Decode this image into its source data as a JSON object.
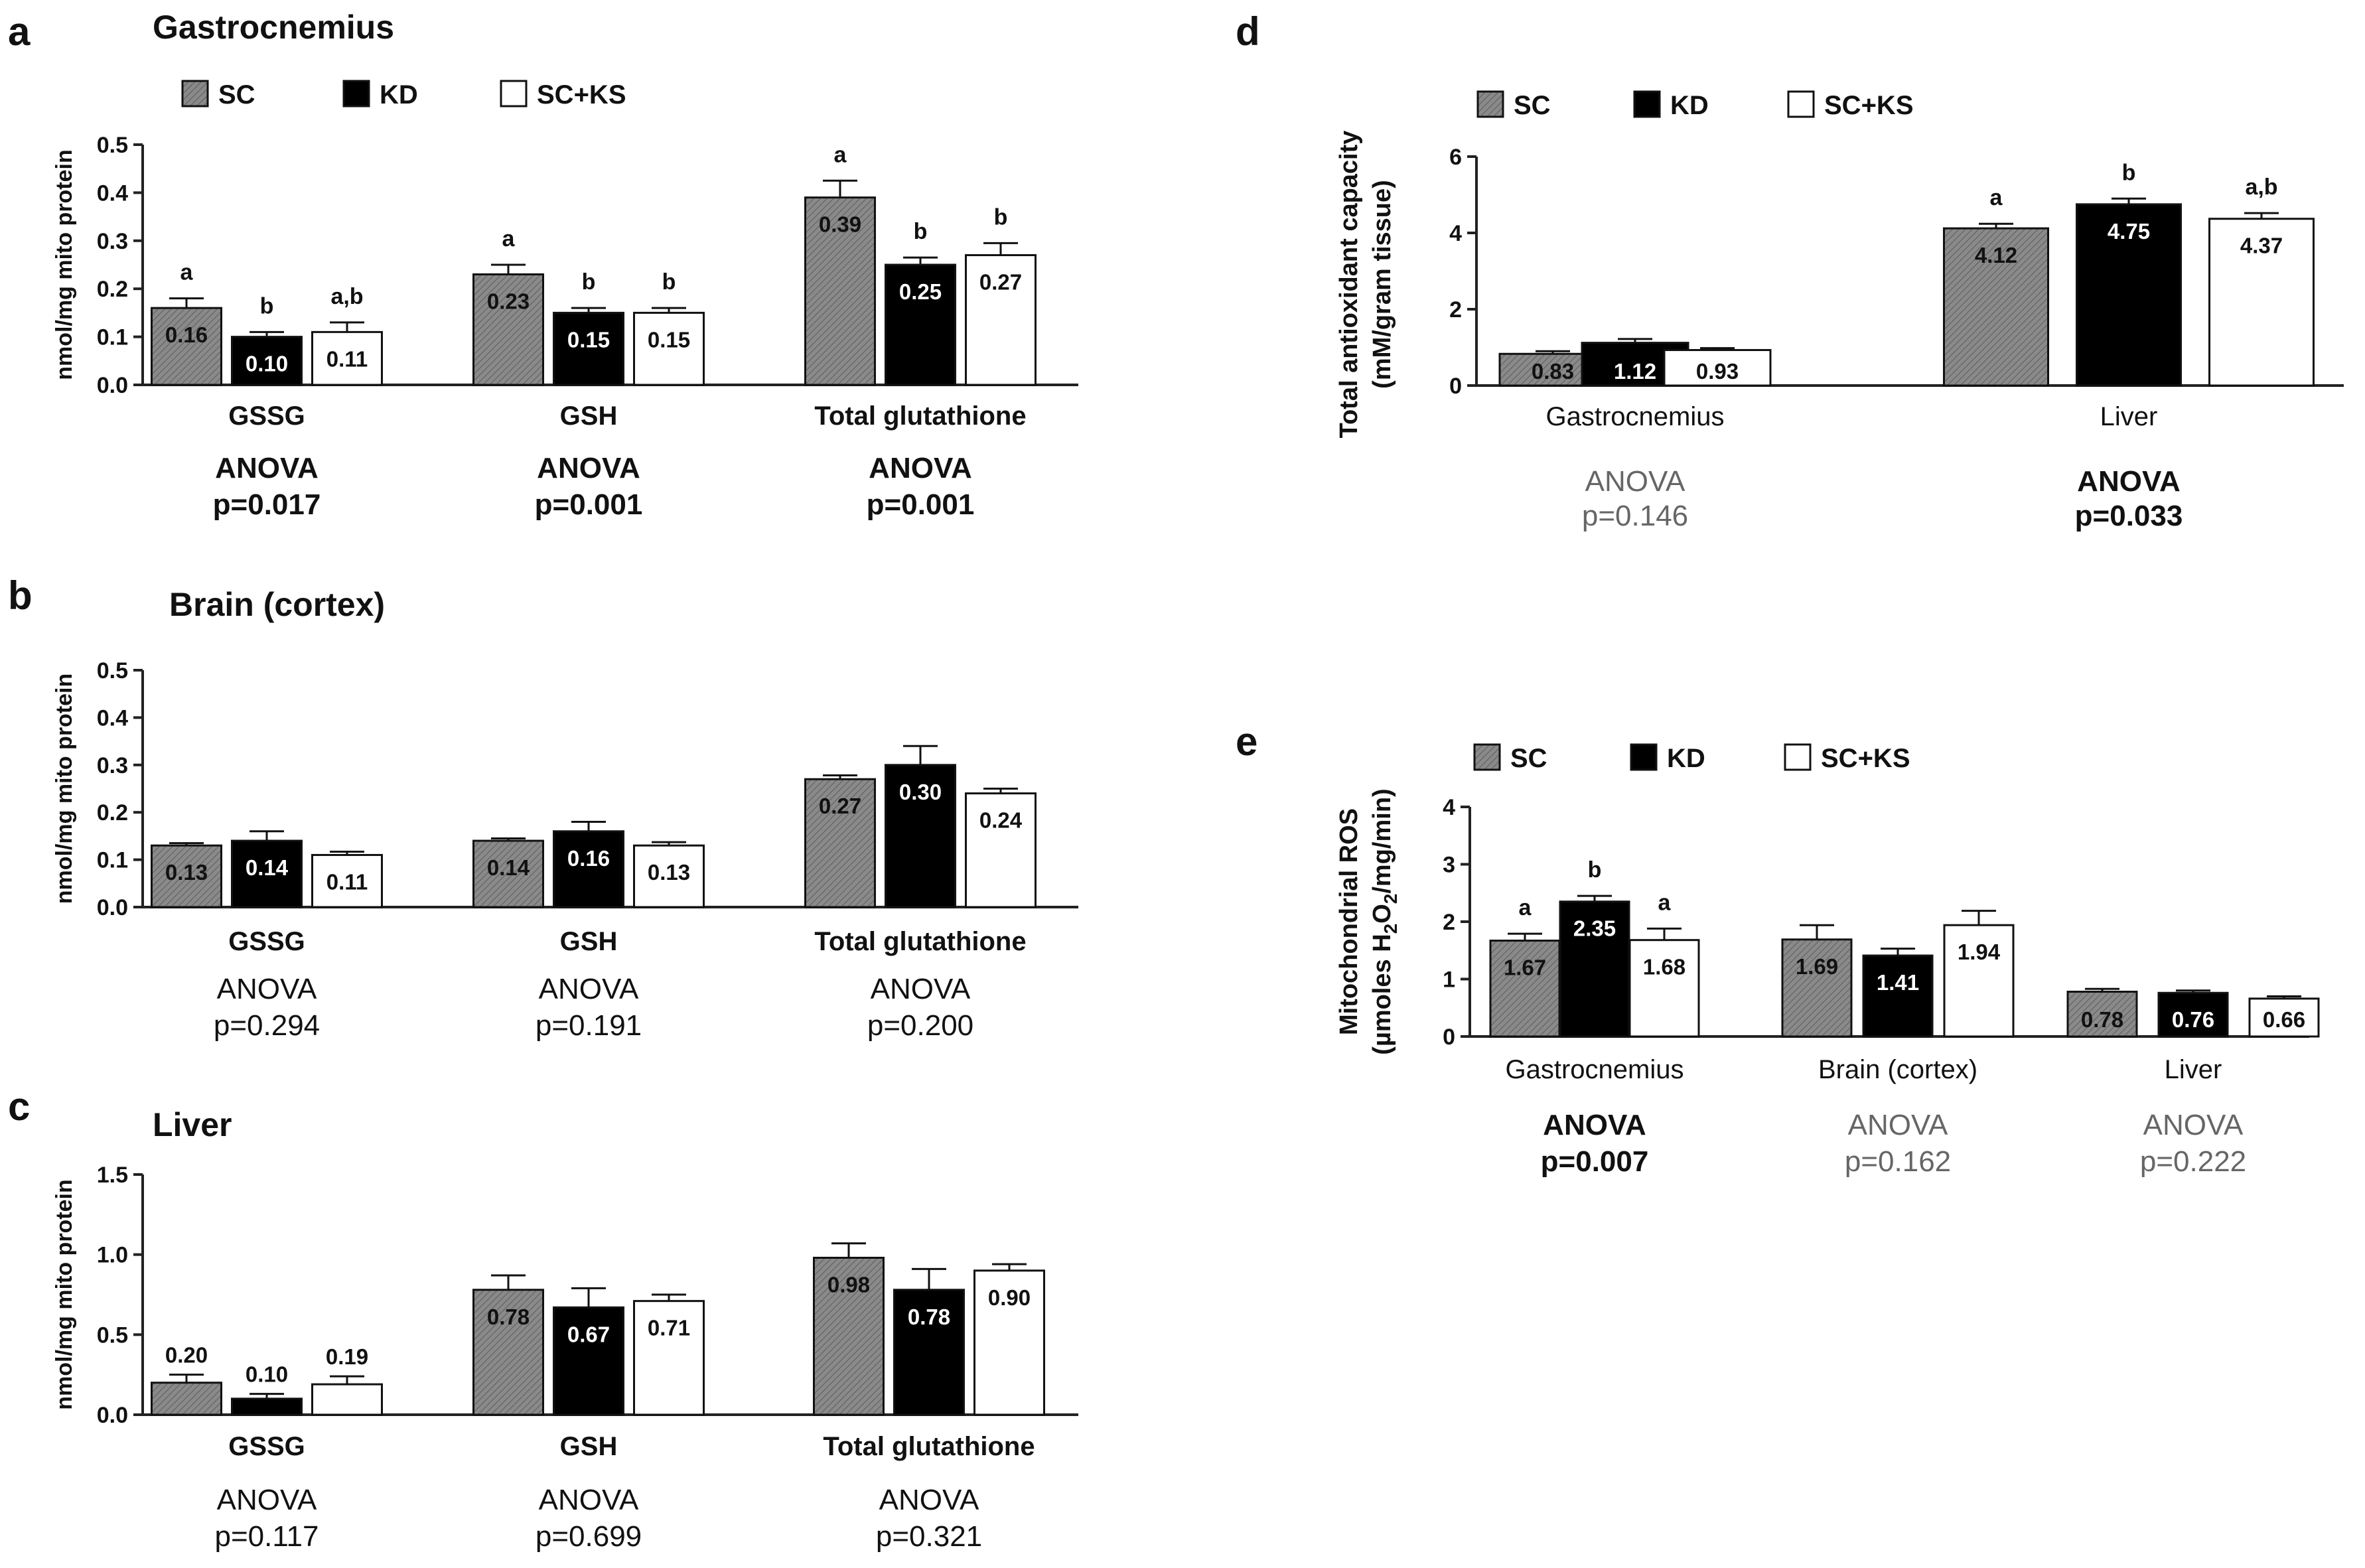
{
  "series_legend": [
    {
      "name": "SC",
      "color": "#7f7f7f"
    },
    {
      "name": "KD",
      "color": "#000000"
    },
    {
      "name": "SC+KS",
      "color": "#ffffff"
    }
  ],
  "chart_data": [
    {
      "panel": "a",
      "type": "bar",
      "title": "Gastrocnemius",
      "ylabel": "nmol/mg mito protein",
      "ylim": [
        0,
        0.5
      ],
      "yticks": [
        "0.0",
        "0.1",
        "0.2",
        "0.3",
        "0.4",
        "0.5"
      ],
      "categories": [
        "GSSG",
        "GSH",
        "Total glutathione"
      ],
      "series": [
        {
          "name": "SC",
          "values": [
            0.16,
            0.23,
            0.39
          ],
          "errors": [
            0.02,
            0.02,
            0.035
          ],
          "labels": [
            "0.16",
            "0.23",
            "0.39"
          ],
          "sig": [
            "a",
            "a",
            "a"
          ]
        },
        {
          "name": "KD",
          "values": [
            0.1,
            0.15,
            0.25
          ],
          "errors": [
            0.01,
            0.01,
            0.015
          ],
          "labels": [
            "0.10",
            "0.15",
            "0.25"
          ],
          "sig": [
            "b",
            "b",
            "b"
          ]
        },
        {
          "name": "SC+KS",
          "values": [
            0.11,
            0.15,
            0.27
          ],
          "errors": [
            0.02,
            0.01,
            0.025
          ],
          "labels": [
            "0.11",
            "0.15",
            "0.27"
          ],
          "sig": [
            "a,b",
            "b",
            "b"
          ]
        }
      ],
      "anova": [
        {
          "line1": "ANOVA",
          "line2": "p=0.017",
          "style": "bold"
        },
        {
          "line1": "ANOVA",
          "line2": "p=0.001",
          "style": "bold"
        },
        {
          "line1": "ANOVA",
          "line2": "p=0.001",
          "style": "bold"
        }
      ]
    },
    {
      "panel": "b",
      "type": "bar",
      "title": "Brain (cortex)",
      "ylabel": "nmol/mg mito protein",
      "ylim": [
        0,
        0.5
      ],
      "yticks": [
        "0.0",
        "0.1",
        "0.2",
        "0.3",
        "0.4",
        "0.5"
      ],
      "categories": [
        "GSSG",
        "GSH",
        "Total glutathione"
      ],
      "series": [
        {
          "name": "SC",
          "values": [
            0.13,
            0.14,
            0.27
          ],
          "errors": [
            0.005,
            0.005,
            0.008
          ],
          "labels": [
            "0.13",
            "0.14",
            "0.27"
          ],
          "sig": [
            "",
            "",
            ""
          ]
        },
        {
          "name": "KD",
          "values": [
            0.14,
            0.16,
            0.3
          ],
          "errors": [
            0.02,
            0.02,
            0.04
          ],
          "labels": [
            "0.14",
            "0.16",
            "0.30"
          ],
          "sig": [
            "",
            "",
            ""
          ]
        },
        {
          "name": "SC+KS",
          "values": [
            0.11,
            0.13,
            0.24
          ],
          "errors": [
            0.007,
            0.007,
            0.01
          ],
          "labels": [
            "0.11",
            "0.13",
            "0.24"
          ],
          "sig": [
            "",
            "",
            ""
          ]
        }
      ],
      "anova": [
        {
          "line1": "ANOVA",
          "line2": "p=0.294",
          "style": "normal"
        },
        {
          "line1": "ANOVA",
          "line2": "p=0.191",
          "style": "normal"
        },
        {
          "line1": "ANOVA",
          "line2": "p=0.200",
          "style": "normal"
        }
      ]
    },
    {
      "panel": "c",
      "type": "bar",
      "title": "Liver",
      "ylabel": "nmol/mg mito protein",
      "ylim": [
        0,
        1.5
      ],
      "yticks": [
        "0.0",
        "0.5",
        "1.0",
        "1.5"
      ],
      "categories": [
        "GSSG",
        "GSH",
        "Total glutathione"
      ],
      "series": [
        {
          "name": "SC",
          "values": [
            0.2,
            0.78,
            0.98
          ],
          "errors": [
            0.05,
            0.09,
            0.09
          ],
          "labels": [
            "0.20",
            "0.78",
            "0.98"
          ],
          "sig": [
            "",
            "",
            ""
          ]
        },
        {
          "name": "KD",
          "values": [
            0.1,
            0.67,
            0.78
          ],
          "errors": [
            0.03,
            0.12,
            0.13
          ],
          "labels": [
            "0.10",
            "0.67",
            "0.78"
          ],
          "sig": [
            "",
            "",
            ""
          ]
        },
        {
          "name": "SC+KS",
          "values": [
            0.19,
            0.71,
            0.9
          ],
          "errors": [
            0.05,
            0.04,
            0.04
          ],
          "labels": [
            "0.19",
            "0.71",
            "0.90"
          ],
          "sig": [
            "",
            "",
            ""
          ]
        }
      ],
      "anova": [
        {
          "line1": "ANOVA",
          "line2": "p=0.117",
          "style": "normal"
        },
        {
          "line1": "ANOVA",
          "line2": "p=0.699",
          "style": "normal"
        },
        {
          "line1": "ANOVA",
          "line2": "p=0.321",
          "style": "normal"
        }
      ]
    },
    {
      "panel": "d",
      "type": "bar",
      "title": "",
      "ylabel": "Total antioxidant capacity",
      "ylabel2": "(mM/gram tissue)",
      "ylim": [
        0,
        6
      ],
      "yticks": [
        "0",
        "2",
        "4",
        "6"
      ],
      "categories": [
        "Gastrocnemius",
        "Liver"
      ],
      "series": [
        {
          "name": "SC",
          "values": [
            0.83,
            4.12
          ],
          "errors": [
            0.07,
            0.12
          ],
          "labels": [
            "0.83",
            "4.12"
          ],
          "sig": [
            "",
            "a"
          ]
        },
        {
          "name": "KD",
          "values": [
            1.12,
            4.75
          ],
          "errors": [
            0.1,
            0.15
          ],
          "labels": [
            "1.12",
            "4.75"
          ],
          "sig": [
            "",
            "b"
          ]
        },
        {
          "name": "SC+KS",
          "values": [
            0.93,
            4.37
          ],
          "errors": [
            0.05,
            0.15
          ],
          "labels": [
            "0.93",
            "4.37"
          ],
          "sig": [
            "",
            "a,b"
          ]
        }
      ],
      "anova": [
        {
          "line1": "ANOVA",
          "line2": "p=0.146",
          "style": "gray"
        },
        {
          "line1": "ANOVA",
          "line2": "p=0.033",
          "style": "bold"
        }
      ]
    },
    {
      "panel": "e",
      "type": "bar",
      "title": "",
      "ylabel": "Mitochondrial ROS",
      "ylabel2_parts": [
        "(µmoles H",
        "2",
        "O",
        "2",
        "/mg/min)"
      ],
      "ylim": [
        0,
        4
      ],
      "yticks": [
        "0",
        "1",
        "2",
        "3",
        "4"
      ],
      "categories": [
        "Gastrocnemius",
        "Brain (cortex)",
        "Liver"
      ],
      "series": [
        {
          "name": "SC",
          "values": [
            1.67,
            1.69,
            0.78
          ],
          "errors": [
            0.12,
            0.25,
            0.05
          ],
          "labels": [
            "1.67",
            "1.69",
            "0.78"
          ],
          "sig": [
            "a",
            "",
            ""
          ]
        },
        {
          "name": "KD",
          "values": [
            2.35,
            1.41,
            0.76
          ],
          "errors": [
            0.1,
            0.12,
            0.04
          ],
          "labels": [
            "2.35",
            "1.41",
            "0.76"
          ],
          "sig": [
            "b",
            "",
            ""
          ]
        },
        {
          "name": "SC+KS",
          "values": [
            1.68,
            1.94,
            0.66
          ],
          "errors": [
            0.2,
            0.25,
            0.04
          ],
          "labels": [
            "1.68",
            "1.94",
            "0.66"
          ],
          "sig": [
            "a",
            "",
            ""
          ]
        }
      ],
      "anova": [
        {
          "line1": "ANOVA",
          "line2": "p=0.007",
          "style": "bold"
        },
        {
          "line1": "ANOVA",
          "line2": "p=0.162",
          "style": "gray"
        },
        {
          "line1": "ANOVA",
          "line2": "p=0.222",
          "style": "gray"
        }
      ]
    }
  ]
}
